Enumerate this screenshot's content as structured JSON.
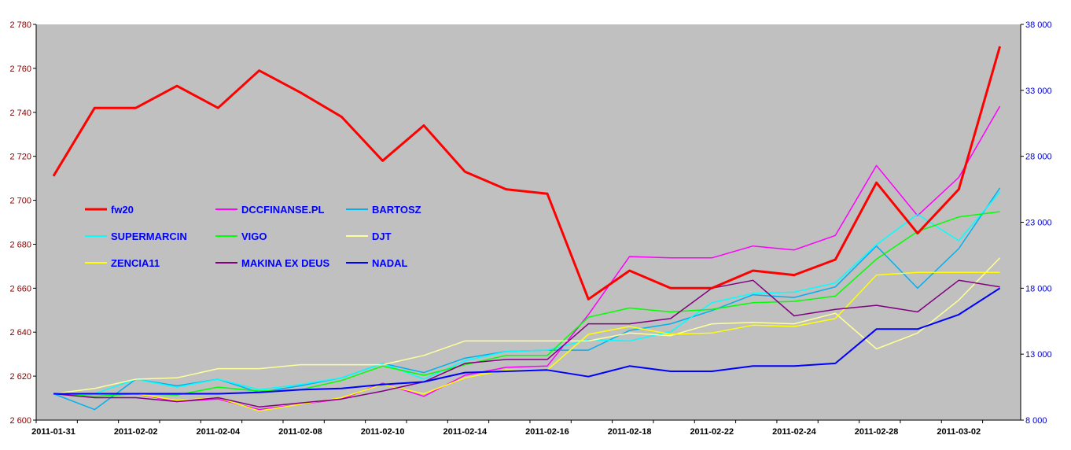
{
  "chart_data": {
    "type": "line",
    "title": "",
    "xlabel": "",
    "ylabel": "",
    "x_tick_labels": [
      "2011-01-31",
      "2011-02-02",
      "2011-02-04",
      "2011-02-08",
      "2011-02-10",
      "2011-02-14",
      "2011-02-16",
      "2011-02-18",
      "2011-02-22",
      "2011-02-24",
      "2011-02-28",
      "2011-03-02"
    ],
    "x": [
      "2011-01-31",
      "2011-02-01",
      "2011-02-02",
      "2011-02-03",
      "2011-02-04",
      "2011-02-07",
      "2011-02-08",
      "2011-02-09",
      "2011-02-10",
      "2011-02-11",
      "2011-02-14",
      "2011-02-15",
      "2011-02-16",
      "2011-02-17",
      "2011-02-18",
      "2011-02-21",
      "2011-02-22",
      "2011-02-23",
      "2011-02-24",
      "2011-02-25",
      "2011-02-28",
      "2011-03-01",
      "2011-03-02",
      "2011-03-03"
    ],
    "y_left": {
      "min": 2600,
      "max": 2780,
      "ticks": [
        "2 600",
        "2 620",
        "2 640",
        "2 660",
        "2 680",
        "2 700",
        "2 720",
        "2 740",
        "2 760",
        "2 780"
      ]
    },
    "y_right": {
      "min": 8000,
      "max": 38000,
      "ticks": [
        "8 000",
        "13 000",
        "18 000",
        "23 000",
        "28 000",
        "33 000",
        "38 000"
      ]
    },
    "plot_background": "#c0c0c0",
    "grid": false,
    "legend": {
      "placement": "inside-left",
      "columns": 3
    },
    "series": [
      {
        "name": "fw20",
        "axis": "left",
        "color": "#ff0000",
        "width": 3,
        "values": [
          2711,
          2742,
          2742,
          2752,
          2742,
          2759,
          2749,
          2738,
          2718,
          2734,
          2713,
          2705,
          2703,
          2655,
          2668,
          2660,
          2660,
          2668,
          2666,
          2673,
          2708,
          2685,
          2705,
          2770
        ]
      },
      {
        "name": "DCCFINANSE.PL",
        "axis": "right",
        "color": "#ff00ff",
        "width": 1.5,
        "values": [
          10000,
          10000,
          10000,
          9400,
          9600,
          8800,
          9200,
          9600,
          10800,
          9800,
          11400,
          12000,
          12100,
          16000,
          20400,
          20300,
          20300,
          21200,
          20900,
          22000,
          27300,
          23500,
          26400,
          31800
        ]
      },
      {
        "name": "BARTOSZ",
        "axis": "right",
        "color": "#00b0f0",
        "width": 1.5,
        "values": [
          10000,
          8800,
          11100,
          10600,
          11100,
          10100,
          10600,
          11200,
          12300,
          11600,
          12700,
          13200,
          13300,
          13300,
          14800,
          15300,
          16300,
          17500,
          17300,
          18100,
          21200,
          18000,
          21000,
          25600
        ]
      },
      {
        "name": "SUPERMARCIN",
        "axis": "right",
        "color": "#00ffff",
        "width": 1.5,
        "values": [
          10000,
          10000,
          11100,
          10500,
          11100,
          10300,
          10700,
          11200,
          12300,
          11100,
          12500,
          13200,
          13300,
          14100,
          14000,
          14700,
          16900,
          17600,
          17700,
          18400,
          21300,
          23600,
          21600,
          25300
        ]
      },
      {
        "name": "VIGO",
        "axis": "right",
        "color": "#00ff00",
        "width": 1.5,
        "values": [
          10000,
          9800,
          10000,
          9900,
          10500,
          10200,
          10300,
          11000,
          12100,
          11400,
          12200,
          12900,
          12900,
          15800,
          16500,
          16200,
          16400,
          16900,
          17000,
          17400,
          20200,
          22300,
          23400,
          23800
        ]
      },
      {
        "name": "DJT",
        "axis": "right",
        "color": "#ffff99",
        "width": 1.5,
        "values": [
          10000,
          10400,
          11100,
          11200,
          11900,
          11900,
          12200,
          12200,
          12200,
          12900,
          14000,
          14000,
          14000,
          14000,
          14600,
          14400,
          15300,
          15400,
          15300,
          16100,
          13400,
          14600,
          17100,
          20300
        ]
      },
      {
        "name": "ZENCIA11",
        "axis": "right",
        "color": "#ffff00",
        "width": 1.5,
        "values": [
          10000,
          10000,
          10000,
          9500,
          9700,
          8700,
          9200,
          9700,
          10700,
          10000,
          11200,
          11800,
          11800,
          14500,
          15100,
          14500,
          14600,
          15200,
          15100,
          15700,
          19000,
          19200,
          19200,
          19200
        ]
      },
      {
        "name": "MAKINA EX DEUS",
        "axis": "right",
        "color": "#800080",
        "width": 1.5,
        "values": [
          10000,
          9700,
          9700,
          9400,
          9700,
          9000,
          9300,
          9600,
          10200,
          10900,
          12300,
          12600,
          12600,
          15300,
          15300,
          15700,
          18000,
          18600,
          15900,
          16400,
          16700,
          16200,
          18600,
          18100
        ]
      },
      {
        "name": "NADAL",
        "axis": "right",
        "color": "#0000ff",
        "width": 2,
        "values": [
          10000,
          10000,
          10000,
          10000,
          10000,
          10100,
          10300,
          10400,
          10700,
          10900,
          11600,
          11700,
          11800,
          11300,
          12100,
          11700,
          11700,
          12100,
          12100,
          12300,
          14900,
          14900,
          16000,
          18000
        ]
      }
    ]
  }
}
